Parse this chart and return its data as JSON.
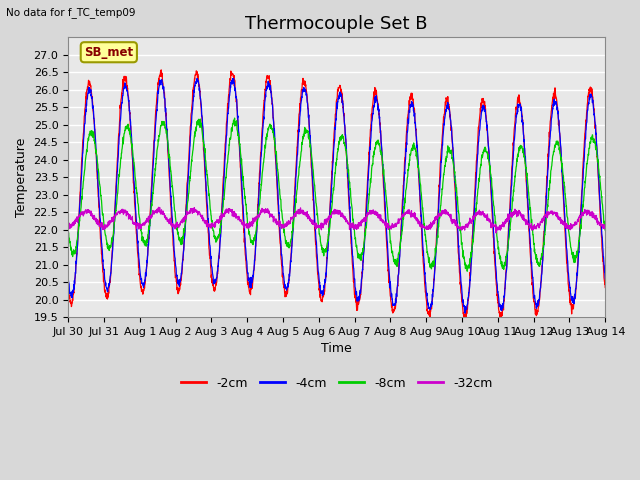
{
  "title": "Thermocouple Set B",
  "no_data_text": "No data for f_TC_temp09",
  "ylabel": "Temperature",
  "xlabel": "Time",
  "legend_label": "SB_met",
  "ylim": [
    19.5,
    27.5
  ],
  "yticks": [
    19.5,
    20.0,
    20.5,
    21.0,
    21.5,
    22.0,
    22.5,
    23.0,
    23.5,
    24.0,
    24.5,
    25.0,
    25.5,
    26.0,
    26.5,
    27.0
  ],
  "xtick_labels": [
    "Jul 30",
    "Jul 31",
    "Aug 1",
    "Aug 2",
    "Aug 3",
    "Aug 4",
    "Aug 5",
    "Aug 6",
    "Aug 7",
    "Aug 8",
    "Aug 9",
    "Aug 10",
    "Aug 11",
    "Aug 12",
    "Aug 13",
    "Aug 14"
  ],
  "line_colors": {
    "-2cm": "#ff0000",
    "-4cm": "#0000ff",
    "-8cm": "#00cc00",
    "-32cm": "#cc00cc"
  },
  "plot_bg_color": "#e8e8e8",
  "fig_bg_color": "#d8d8d8",
  "grid_color": "#ffffff",
  "legend_box_color": "#ffff99",
  "legend_box_edge": "#999900",
  "legend_text_color": "#880000",
  "title_fontsize": 13,
  "axis_fontsize": 9,
  "tick_fontsize": 8,
  "amp_2cm": 3.1,
  "amp_4cm": 2.9,
  "amp_8cm": 1.7,
  "amp_32cm": 0.22,
  "base_mean": 23.0,
  "base_32cm": 22.3
}
